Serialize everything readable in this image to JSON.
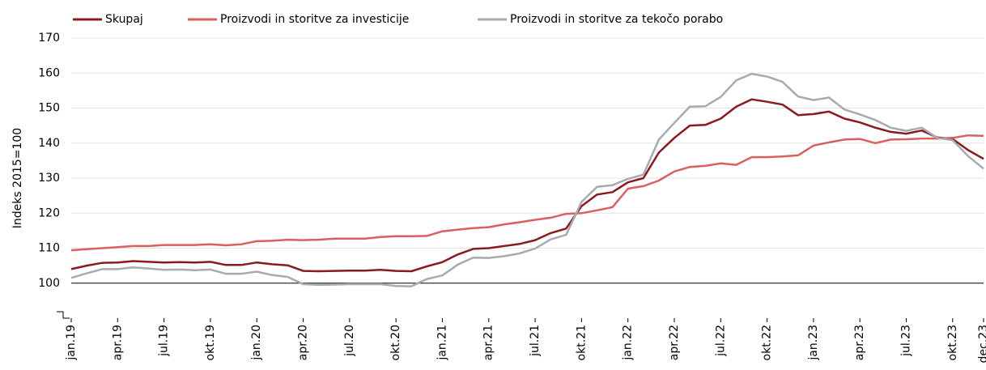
{
  "chart_data": {
    "type": "line",
    "y_label": "Indeks 2015=100",
    "categories": [
      "jan.19",
      null,
      null,
      "apr.19",
      null,
      null,
      "jul.19",
      null,
      null,
      "okt.19",
      null,
      null,
      "jan.20",
      null,
      null,
      "apr.20",
      null,
      null,
      "jul.20",
      null,
      null,
      "okt.20",
      null,
      null,
      "jan.21",
      null,
      null,
      "apr.21",
      null,
      null,
      "jul.21",
      null,
      null,
      "okt.21",
      null,
      null,
      "jan.22",
      null,
      null,
      "apr.22",
      null,
      null,
      "jul.22",
      null,
      null,
      "okt.22",
      null,
      null,
      "jan.23",
      null,
      null,
      "apr.23",
      null,
      null,
      "jul.23",
      null,
      null,
      "okt.23",
      null,
      "dec.23"
    ],
    "series": [
      {
        "name": "Skupaj",
        "color": "#8b1a1f",
        "values": [
          104,
          105,
          105.8,
          105.9,
          106.3,
          106.1,
          105.9,
          106,
          105.9,
          106.1,
          105.2,
          105.2,
          105.9,
          105.4,
          105.1,
          103.5,
          103.4,
          103.5,
          103.6,
          103.6,
          103.8,
          103.5,
          103.4,
          104.8,
          106,
          108.2,
          109.8,
          110,
          110.6,
          111.2,
          112.3,
          114.3,
          115.6,
          122,
          125.3,
          126,
          128.8,
          130,
          137.3,
          141.5,
          145,
          145.2,
          147,
          150.4,
          152.5,
          151.8,
          151,
          148,
          148.3,
          149,
          147,
          145.9,
          144.4,
          143.2,
          142.7,
          143.6,
          141.6,
          141.2,
          138,
          135.5
        ]
      },
      {
        "name": "Proizvodi in storitve za investicije",
        "color": "#d9605f",
        "values": [
          109.4,
          109.7,
          110,
          110.3,
          110.6,
          110.6,
          110.9,
          110.9,
          110.9,
          111.1,
          110.8,
          111.1,
          112,
          112.1,
          112.4,
          112.3,
          112.4,
          112.7,
          112.7,
          112.7,
          113.2,
          113.4,
          113.4,
          113.5,
          114.8,
          115.3,
          115.7,
          116,
          116.8,
          117.4,
          118.1,
          118.7,
          119.8,
          120,
          120.8,
          121.7,
          127,
          127.7,
          129.3,
          131.9,
          133.2,
          133.5,
          134.2,
          133.8,
          136,
          136,
          136.2,
          136.5,
          139.3,
          140.2,
          141,
          141.2,
          140,
          141,
          141.1,
          141.3,
          141.3,
          141.5,
          142.2,
          142.1
        ]
      },
      {
        "name": "Proizvodi in storitve za tekočo porabo",
        "color": "#a6abb0",
        "values": [
          101.5,
          102.8,
          104,
          104,
          104.5,
          104.2,
          103.8,
          103.9,
          103.7,
          103.9,
          102.7,
          102.7,
          103.3,
          102.3,
          101.8,
          99.7,
          99.5,
          99.6,
          99.7,
          99.7,
          99.7,
          99.2,
          99.1,
          101.2,
          102.2,
          105.3,
          107.3,
          107.2,
          107.7,
          108.5,
          109.9,
          112.5,
          113.8,
          123.2,
          127.5,
          128,
          129.8,
          131,
          141,
          145.8,
          150.4,
          150.5,
          153.2,
          157.9,
          159.8,
          159,
          157.5,
          153.3,
          152.3,
          153,
          149.6,
          148.2,
          146.6,
          144.4,
          143.5,
          144.4,
          141.5,
          140.8,
          136.3,
          132.7
        ]
      }
    ],
    "ylim": [
      90,
      170
    ],
    "yticks": [
      100,
      110,
      120,
      130,
      140,
      150,
      160,
      170
    ],
    "reference_line": 100,
    "grid": true
  }
}
